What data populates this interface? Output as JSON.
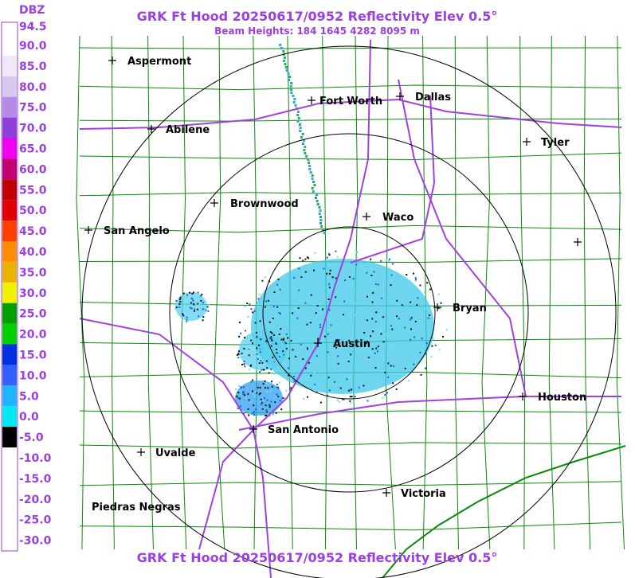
{
  "header": {
    "title": "GRK Ft Hood 20250617/0952 Reflectivity Elev 0.5°",
    "subtitle": "Beam Heights: 184 1645 4282 8095 m"
  },
  "footer": {
    "title": "GRK Ft Hood 20250617/0952 Reflectivity Elev 0.5°"
  },
  "legend": {
    "unit": "DBZ",
    "labels": [
      "94.5",
      "90.0",
      "85.0",
      "80.0",
      "75.0",
      "70.0",
      "65.0",
      "60.0",
      "55.0",
      "50.0",
      "45.0",
      "40.0",
      "35.0",
      "30.0",
      "25.0",
      "20.0",
      "15.0",
      "10.0",
      "5.0",
      "0.0",
      "-5.0",
      "-10.0",
      "-15.0",
      "-20.0",
      "-25.0",
      "-30.0"
    ]
  },
  "cities": [
    "Aspermont",
    "Fort Worth",
    "Dallas",
    "Abilene",
    "Tyler",
    "Brownwood",
    "Waco",
    "San Angelo",
    "Bryan",
    "Austin",
    "Houston",
    "San Antonio",
    "Uvalde",
    "Victoria",
    "Piedras Negras"
  ]
}
